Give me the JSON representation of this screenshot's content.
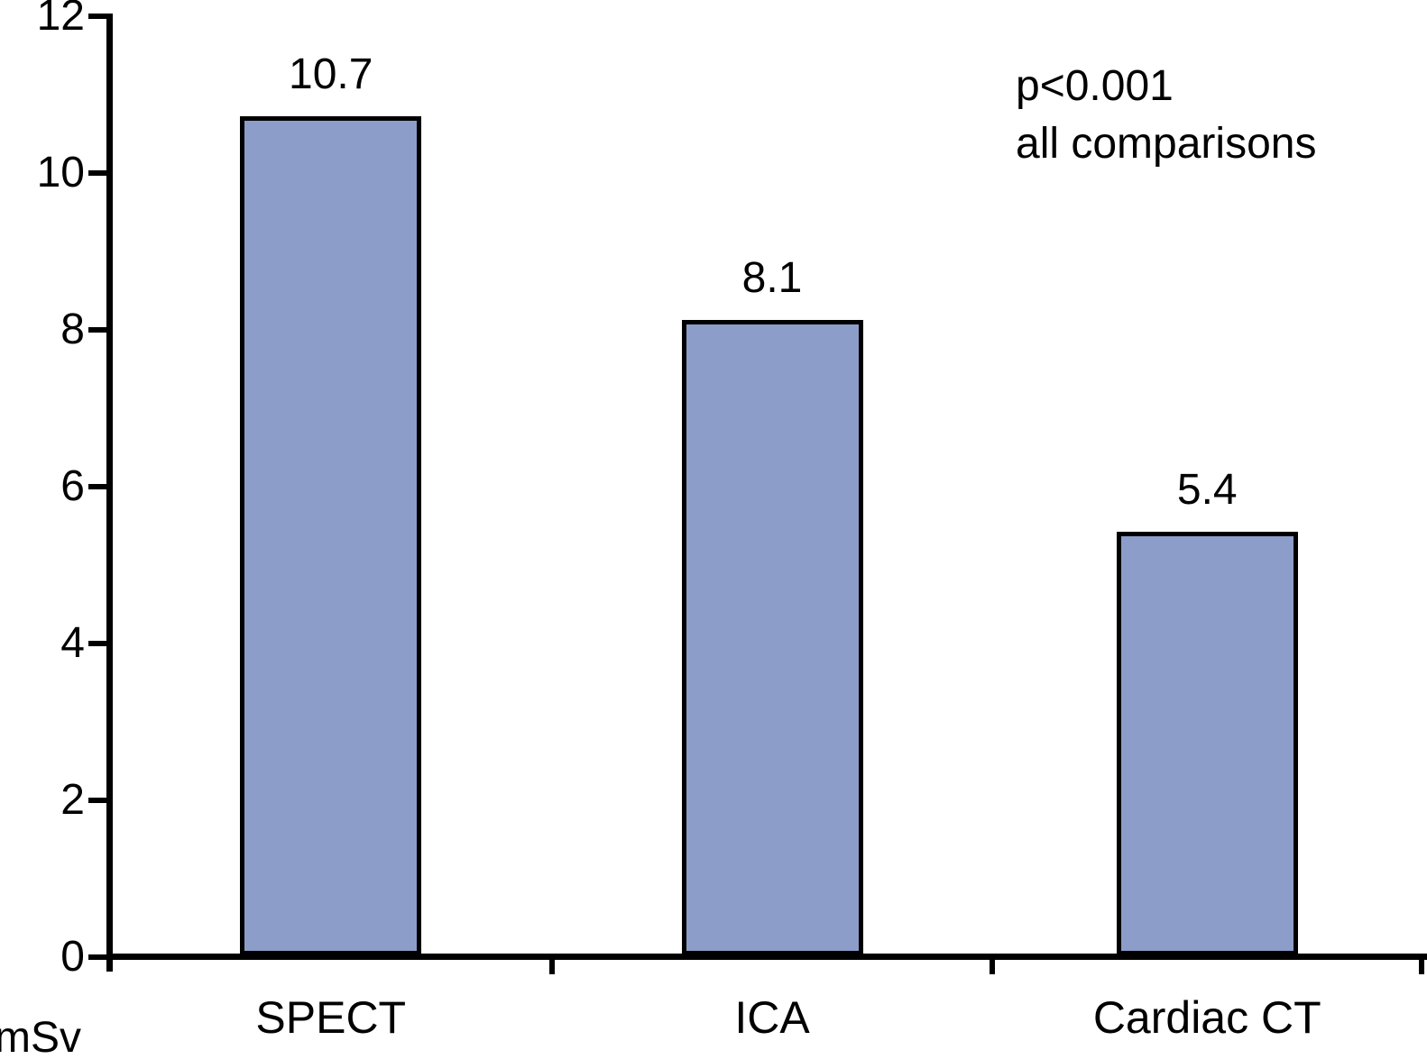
{
  "chart_data": {
    "type": "bar",
    "title": "",
    "categories": [
      "SPECT",
      "ICA",
      "Cardiac CT"
    ],
    "values": [
      10.7,
      8.1,
      5.4
    ],
    "value_labels": [
      "10.7",
      "8.1",
      "5.4"
    ],
    "xlabel": "",
    "ylabel": "mSv",
    "ylim": [
      0,
      12
    ],
    "yticks": [
      12,
      10,
      8,
      6,
      4,
      2,
      0
    ],
    "grid": false,
    "legend_position": "none",
    "annotation_lines": [
      "p<0.001",
      "all comparisons"
    ],
    "colors": {
      "bar_fill": "#8C9DC9",
      "bar_border": "#000000",
      "axis": "#000000",
      "text": "#000000"
    }
  }
}
